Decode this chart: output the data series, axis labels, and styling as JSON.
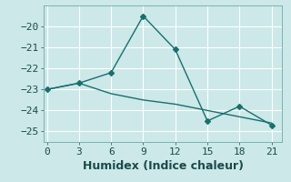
{
  "xlabel": "Humidex (Indice chaleur)",
  "bg_color": "#cce8e8",
  "grid_color": "#b0d4d4",
  "line1_x": [
    0,
    3,
    6,
    9,
    12,
    15,
    18,
    21
  ],
  "line1_y": [
    -23.0,
    -22.7,
    -22.2,
    -19.5,
    -21.1,
    -24.5,
    -23.8,
    -24.7
  ],
  "line2_x": [
    0,
    3,
    6,
    9,
    12,
    15,
    18,
    21
  ],
  "line2_y": [
    -23.0,
    -22.7,
    -23.2,
    -23.5,
    -23.7,
    -24.0,
    -24.3,
    -24.6
  ],
  "line_color": "#1a6e6e",
  "ylim": [
    -25.5,
    -19.0
  ],
  "xlim": [
    -0.3,
    22.0
  ],
  "xticks": [
    0,
    3,
    6,
    9,
    12,
    15,
    18,
    21
  ],
  "yticks": [
    -25,
    -24,
    -23,
    -22,
    -21,
    -20
  ],
  "tick_fontsize": 8,
  "xlabel_fontsize": 9
}
